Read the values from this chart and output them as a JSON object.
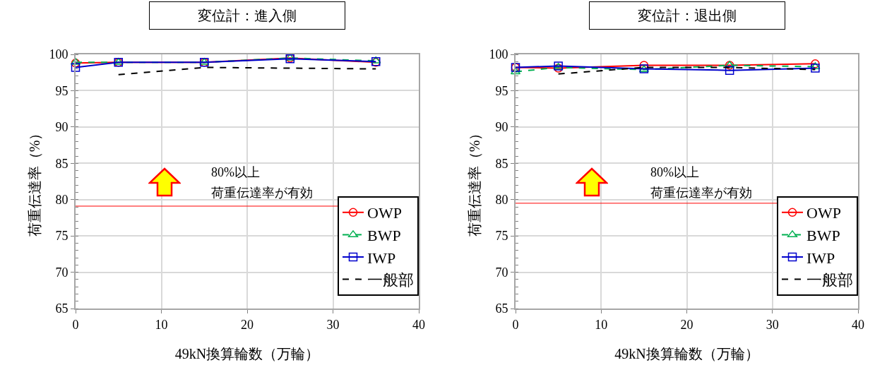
{
  "chart_data": [
    {
      "type": "line",
      "title": "変位計：進入側",
      "xlabel": "49kN換算輪数（万輪）",
      "ylabel": "荷重伝達率（%）",
      "x": [
        0,
        5,
        15,
        25,
        35
      ],
      "xlim": [
        0,
        40
      ],
      "xticks": [
        0,
        10,
        20,
        30,
        40
      ],
      "ylim": [
        65,
        100
      ],
      "yticks": [
        65,
        70,
        75,
        80,
        85,
        90,
        95,
        100
      ],
      "grid": true,
      "legend": "bottom right",
      "series": [
        {
          "name": "OWP",
          "color": "#ff0000",
          "marker": "circle",
          "line_style": "solid",
          "values": [
            98.8,
            98.9,
            98.9,
            99.5,
            98.9
          ]
        },
        {
          "name": "BWP",
          "color": "#00b050",
          "marker": "triangle",
          "line_style": "dashed",
          "values": [
            98.9,
            98.9,
            98.9,
            99.5,
            99.1
          ]
        },
        {
          "name": "IWP",
          "color": "#0000cc",
          "marker": "square",
          "line_style": "solid",
          "values": [
            98.2,
            98.9,
            98.9,
            99.4,
            99.0
          ]
        },
        {
          "name": "一般部",
          "color": "#000000",
          "marker": "none",
          "line_style": "dashed",
          "values": [
            null,
            97.2,
            98.2,
            98.1,
            98.0
          ]
        }
      ],
      "ref_lines": [
        {
          "axis": "y",
          "value": 79.1,
          "color": "#ff0000"
        }
      ],
      "annotations": [
        "80%以上",
        "荷重伝達率が有効"
      ]
    },
    {
      "type": "line",
      "title": "変位計：退出側",
      "xlabel": "49kN換算輪数（万輪）",
      "ylabel": "荷重伝達率（%）",
      "x": [
        0,
        5,
        15,
        25,
        35
      ],
      "xlim": [
        0,
        40
      ],
      "xticks": [
        0,
        10,
        20,
        30,
        40
      ],
      "ylim": [
        65,
        100
      ],
      "yticks": [
        65,
        70,
        75,
        80,
        85,
        90,
        95,
        100
      ],
      "grid": true,
      "legend": "bottom right",
      "series": [
        {
          "name": "OWP",
          "color": "#ff0000",
          "marker": "circle",
          "line_style": "solid",
          "values": [
            98.2,
            98.1,
            98.5,
            98.5,
            98.7
          ]
        },
        {
          "name": "BWP",
          "color": "#00b050",
          "marker": "triangle",
          "line_style": "dashed",
          "values": [
            97.6,
            98.2,
            97.9,
            98.5,
            98.3
          ]
        },
        {
          "name": "IWP",
          "color": "#0000cc",
          "marker": "square",
          "line_style": "solid",
          "values": [
            98.2,
            98.4,
            98.0,
            97.8,
            98.1
          ]
        },
        {
          "name": "一般部",
          "color": "#000000",
          "marker": "none",
          "line_style": "dashed",
          "values": [
            null,
            97.3,
            98.2,
            98.2,
            97.9
          ]
        }
      ],
      "ref_lines": [
        {
          "axis": "y",
          "value": 79.5,
          "color": "#ff0000"
        }
      ],
      "annotations": [
        "80%以上",
        "荷重伝達率が有効"
      ]
    }
  ]
}
